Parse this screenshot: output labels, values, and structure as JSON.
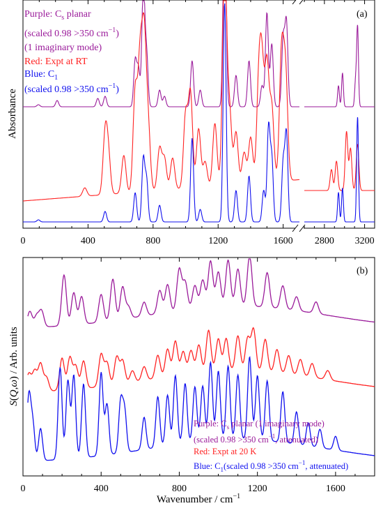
{
  "colors": {
    "purple": "#9a1a9a",
    "red": "#ff2222",
    "blue": "#1010ee"
  },
  "chart_data": [
    {
      "panel": "(a)",
      "type": "line",
      "xlabel": "",
      "ylabel": "Absorbance",
      "x_segments": [
        {
          "xlim": [
            0,
            1700
          ],
          "ticks": [
            0,
            400,
            800,
            1200,
            1600
          ]
        },
        {
          "xlim": [
            2600,
            3300
          ],
          "ticks": [
            2800,
            3200
          ]
        }
      ],
      "legend": [
        {
          "color": "purple",
          "lines": [
            "Purple: C",
            "s",
            " planar"
          ]
        },
        {
          "color": "purple",
          "text": "(scaled 0.98 >350 cm",
          "sup": "−1",
          "tail": ")"
        },
        {
          "color": "purple",
          "text": "(1 imaginary mode)"
        },
        {
          "color": "red",
          "text": "Red: Expt at RT"
        },
        {
          "color": "blue",
          "text": "Blue: C",
          "sub": "1"
        },
        {
          "color": "blue",
          "text": "(scaled 0.98 >350 cm",
          "sup": "−1",
          "tail": ")"
        }
      ],
      "series": [
        {
          "name": "Purple: Cs planar (scaled 0.98 >350 cm−1) (1 imaginary mode)",
          "color": "purple",
          "baseline": 0.55,
          "width": 9,
          "peaks": [
            [
              95,
              0.01
            ],
            [
              210,
              0.03
            ],
            [
              460,
              0.04
            ],
            [
              505,
              0.05
            ],
            [
              690,
              0.22
            ],
            [
              710,
              0.18
            ],
            [
              740,
              0.58
            ],
            [
              760,
              0.25
            ],
            [
              840,
              0.08
            ],
            [
              870,
              0.05
            ],
            [
              1040,
              0.22
            ],
            [
              1090,
              0.08
            ],
            [
              1240,
              1.1
            ],
            [
              1310,
              0.15
            ],
            [
              1390,
              0.22
            ],
            [
              1470,
              0.1
            ],
            [
              1500,
              0.45
            ],
            [
              1530,
              0.3
            ],
            [
              1600,
              0.32
            ],
            [
              1620,
              0.4
            ],
            [
              2940,
              0.1
            ],
            [
              2980,
              0.16
            ],
            [
              3110,
              0.12
            ],
            [
              3130,
              0.38
            ]
          ]
        },
        {
          "name": "Red: Expt at RT",
          "color": "red",
          "baseline": 0.1,
          "width": 13,
          "peaks": [
            [
              380,
              0.04
            ],
            [
              505,
              0.28
            ],
            [
              525,
              0.18
            ],
            [
              620,
              0.18
            ],
            [
              690,
              0.48
            ],
            [
              720,
              0.6
            ],
            [
              745,
              0.7
            ],
            [
              770,
              0.3
            ],
            [
              840,
              0.2
            ],
            [
              870,
              0.15
            ],
            [
              920,
              0.15
            ],
            [
              1000,
              0.35
            ],
            [
              1030,
              0.45
            ],
            [
              1080,
              0.28
            ],
            [
              1120,
              0.12
            ],
            [
              1180,
              0.3
            ],
            [
              1240,
              1.05
            ],
            [
              1270,
              0.35
            ],
            [
              1310,
              0.25
            ],
            [
              1360,
              0.15
            ],
            [
              1400,
              0.22
            ],
            [
              1450,
              0.45
            ],
            [
              1470,
              0.5
            ],
            [
              1500,
              0.55
            ],
            [
              1530,
              0.35
            ],
            [
              1590,
              0.6
            ],
            [
              1615,
              0.5
            ],
            [
              2870,
              0.1
            ],
            [
              2920,
              0.14
            ],
            [
              3020,
              0.28
            ],
            [
              3060,
              0.2
            ],
            [
              3130,
              0.22
            ]
          ]
        },
        {
          "name": "Blue: C1 (scaled 0.98 >350 cm−1)",
          "color": "blue",
          "baseline": 0.0,
          "width": 9,
          "peaks": [
            [
              95,
              0.01
            ],
            [
              505,
              0.05
            ],
            [
              690,
              0.14
            ],
            [
              740,
              0.3
            ],
            [
              760,
              0.2
            ],
            [
              840,
              0.08
            ],
            [
              1040,
              0.4
            ],
            [
              1090,
              0.06
            ],
            [
              1240,
              1.05
            ],
            [
              1310,
              0.15
            ],
            [
              1390,
              0.22
            ],
            [
              1480,
              0.15
            ],
            [
              1510,
              0.45
            ],
            [
              1530,
              0.3
            ],
            [
              1600,
              0.28
            ],
            [
              1620,
              0.42
            ],
            [
              2940,
              0.14
            ],
            [
              2980,
              0.16
            ],
            [
              3130,
              0.5
            ]
          ]
        }
      ]
    },
    {
      "panel": "(b)",
      "type": "line",
      "xlabel_parts": [
        "Wavenumber / cm",
        "−1"
      ],
      "ylabel_parts": [
        "S",
        "(",
        "Q",
        ",",
        "ω",
        ") / Arb. units"
      ],
      "xlim": [
        0,
        1800
      ],
      "xticks": [
        0,
        400,
        800,
        1200,
        1600
      ],
      "legend": [
        {
          "color": "purple",
          "text": "Purple: C",
          "sub": "s",
          "tail": " planar (1 imaginary mode)"
        },
        {
          "color": "purple",
          "text": "(scaled 0.98 >350 cm",
          "sup": "−1",
          "tail": ", attenuated)"
        },
        {
          "color": "red",
          "text": "Red: Expt at 20 K"
        },
        {
          "color": "blue",
          "text": "Blue: C",
          "sub": "1",
          "tail": "(scaled 0.98 >350 cm",
          "sup2": "−1",
          "tail2": ", attenuated)"
        }
      ],
      "series": [
        {
          "name": "Purple: Cs planar (1 imaginary mode) (scaled 0.98 >350 cm−1, attenuated)",
          "color": "purple",
          "baseline": 0.62,
          "width": 12,
          "peaks": [
            [
              35,
              0.07
            ],
            [
              70,
              0.05
            ],
            [
              95,
              0.07
            ],
            [
              210,
              0.22
            ],
            [
              260,
              0.14
            ],
            [
              300,
              0.12
            ],
            [
              400,
              0.12
            ],
            [
              460,
              0.18
            ],
            [
              510,
              0.14
            ],
            [
              540,
              0.05
            ],
            [
              620,
              0.06
            ],
            [
              700,
              0.1
            ],
            [
              740,
              0.12
            ],
            [
              800,
              0.18
            ],
            [
              830,
              0.12
            ],
            [
              880,
              0.1
            ],
            [
              920,
              0.12
            ],
            [
              960,
              0.2
            ],
            [
              1000,
              0.15
            ],
            [
              1050,
              0.2
            ],
            [
              1100,
              0.16
            ],
            [
              1160,
              0.22
            ],
            [
              1250,
              0.15
            ],
            [
              1330,
              0.1
            ],
            [
              1400,
              0.06
            ],
            [
              1500,
              0.05
            ]
          ]
        },
        {
          "name": "Red: Expt at 20 K",
          "color": "red",
          "baseline": 0.34,
          "width": 12,
          "peaks": [
            [
              30,
              0.08
            ],
            [
              60,
              0.09
            ],
            [
              90,
              0.12
            ],
            [
              120,
              0.06
            ],
            [
              200,
              0.14
            ],
            [
              240,
              0.14
            ],
            [
              270,
              0.1
            ],
            [
              310,
              0.12
            ],
            [
              400,
              0.14
            ],
            [
              430,
              0.1
            ],
            [
              480,
              0.12
            ],
            [
              510,
              0.1
            ],
            [
              560,
              0.05
            ],
            [
              620,
              0.06
            ],
            [
              690,
              0.1
            ],
            [
              740,
              0.12
            ],
            [
              780,
              0.15
            ],
            [
              820,
              0.1
            ],
            [
              860,
              0.1
            ],
            [
              900,
              0.12
            ],
            [
              950,
              0.18
            ],
            [
              1000,
              0.14
            ],
            [
              1040,
              0.14
            ],
            [
              1100,
              0.15
            ],
            [
              1150,
              0.14
            ],
            [
              1180,
              0.18
            ],
            [
              1240,
              0.14
            ],
            [
              1300,
              0.1
            ],
            [
              1360,
              0.08
            ],
            [
              1420,
              0.07
            ],
            [
              1480,
              0.06
            ],
            [
              1560,
              0.04
            ]
          ]
        },
        {
          "name": "Blue: C1 (scaled 0.98 >350 cm−1, attenuated)",
          "color": "blue",
          "baseline": 0.04,
          "width": 10,
          "peaks": [
            [
              30,
              0.28
            ],
            [
              50,
              0.16
            ],
            [
              90,
              0.14
            ],
            [
              190,
              0.4
            ],
            [
              230,
              0.34
            ],
            [
              260,
              0.36
            ],
            [
              310,
              0.32
            ],
            [
              400,
              0.36
            ],
            [
              430,
              0.22
            ],
            [
              500,
              0.22
            ],
            [
              520,
              0.18
            ],
            [
              620,
              0.14
            ],
            [
              690,
              0.22
            ],
            [
              740,
              0.22
            ],
            [
              780,
              0.3
            ],
            [
              830,
              0.26
            ],
            [
              880,
              0.24
            ],
            [
              920,
              0.24
            ],
            [
              960,
              0.34
            ],
            [
              1000,
              0.3
            ],
            [
              1050,
              0.32
            ],
            [
              1100,
              0.28
            ],
            [
              1160,
              0.36
            ],
            [
              1200,
              0.28
            ],
            [
              1250,
              0.26
            ],
            [
              1330,
              0.22
            ],
            [
              1400,
              0.14
            ],
            [
              1460,
              0.1
            ],
            [
              1520,
              0.08
            ],
            [
              1600,
              0.06
            ]
          ]
        }
      ]
    }
  ]
}
